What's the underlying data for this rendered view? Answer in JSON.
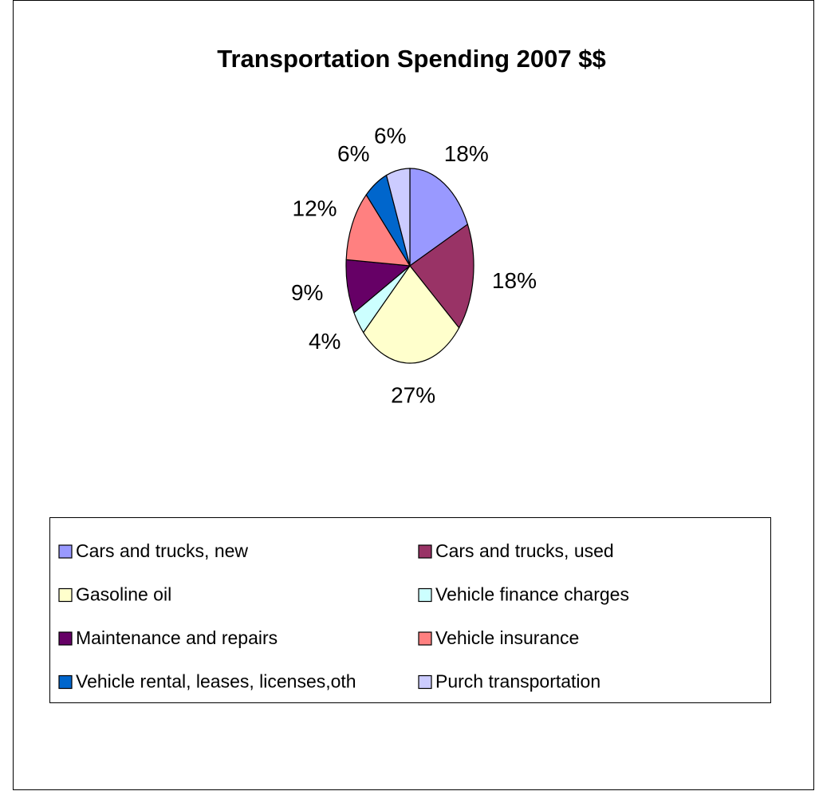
{
  "chart_data": {
    "type": "pie",
    "title": "Transportation Spending 2007 $$",
    "categories": [
      "Cars and trucks, new",
      "Cars and trucks, used",
      "Gasoline oil",
      "Vehicle finance charges",
      "Maintenance and repairs",
      "Vehicle insurance",
      "Vehicle rental, leases, licenses,oth",
      "Purch transportation"
    ],
    "values": [
      18,
      18,
      27,
      4,
      9,
      12,
      6,
      6
    ],
    "value_labels": [
      "18%",
      "18%",
      "27%",
      "4%",
      "9%",
      "12%",
      "6%",
      "6%"
    ],
    "colors": [
      "#9999ff",
      "#993366",
      "#ffffcc",
      "#ccffff",
      "#660066",
      "#ff8080",
      "#0066cc",
      "#ccccff"
    ],
    "legend": "bottom"
  }
}
